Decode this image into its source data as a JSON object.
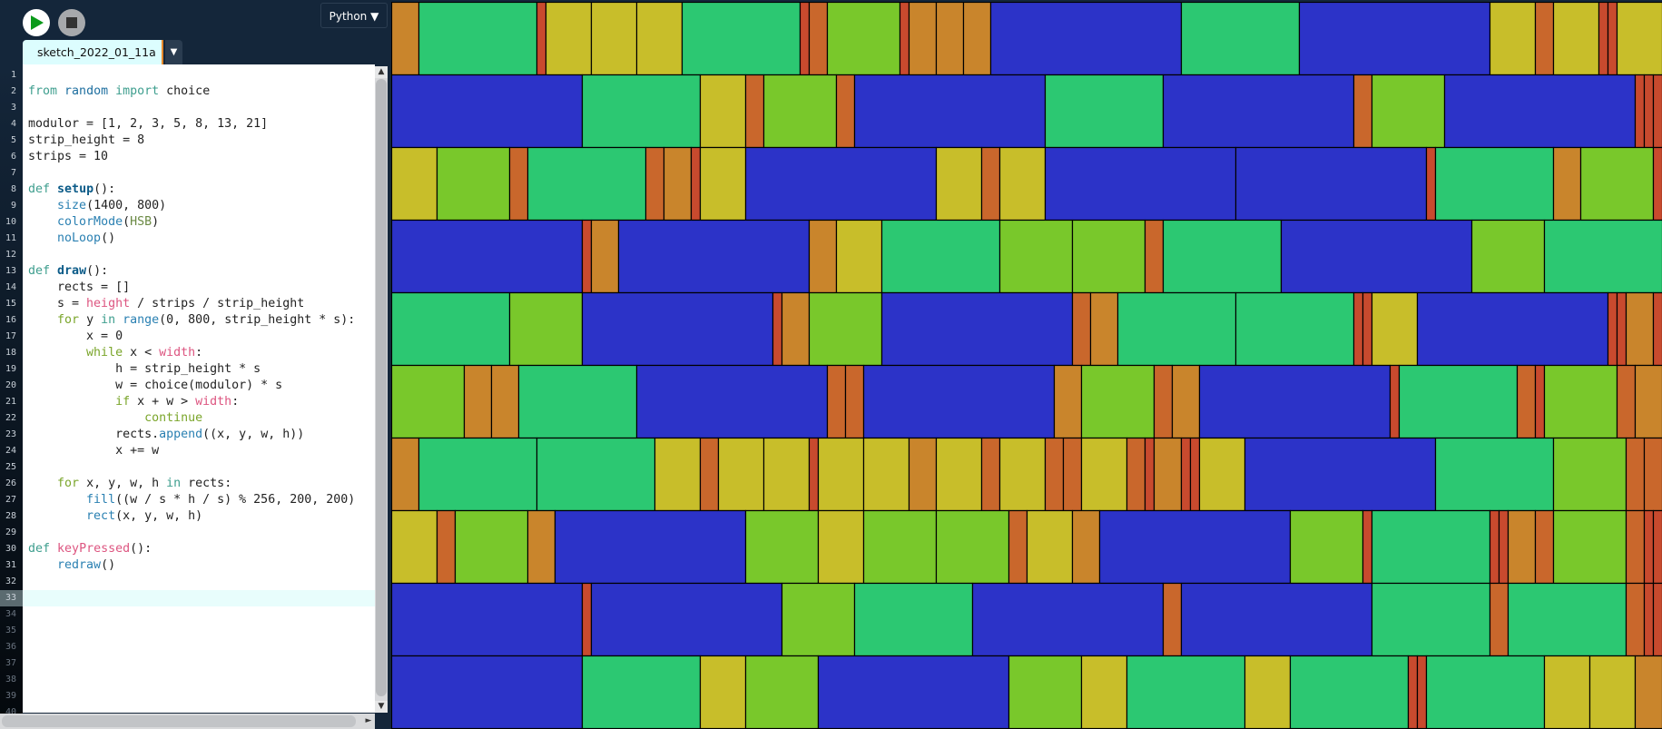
{
  "toolbar": {
    "run_icon": "play-icon",
    "stop_icon": "stop-icon",
    "mode": "Python ▼"
  },
  "tab": {
    "name": "sketch_2022_01_11a",
    "menu": "▼"
  },
  "editor": {
    "current_line": 33,
    "line_count": 40,
    "lines": [
      [],
      [
        [
          "from",
          "kw"
        ],
        [
          " "
        ],
        [
          "random",
          "mod"
        ],
        [
          " "
        ],
        [
          "import",
          "kw"
        ],
        [
          " choice"
        ]
      ],
      [],
      [
        [
          "modulor = [1, 2, 3, 5, 8, 13, 21]"
        ]
      ],
      [
        [
          "strip_height = 8"
        ]
      ],
      [
        [
          "strips = 10"
        ]
      ],
      [],
      [
        [
          "def",
          "kw"
        ],
        [
          " "
        ],
        [
          "setup",
          "fn"
        ],
        [
          "():"
        ]
      ],
      [
        [
          "    "
        ],
        [
          "size",
          "bi"
        ],
        [
          "(1400, 800)"
        ]
      ],
      [
        [
          "    "
        ],
        [
          "colorMode",
          "bi"
        ],
        [
          "("
        ],
        [
          "HSB",
          "const"
        ],
        [
          ")"
        ]
      ],
      [
        [
          "    "
        ],
        [
          "noLoop",
          "bi"
        ],
        [
          "()"
        ]
      ],
      [],
      [
        [
          "def",
          "kw"
        ],
        [
          " "
        ],
        [
          "draw",
          "fn"
        ],
        [
          "():"
        ]
      ],
      [
        [
          "    rects = []"
        ]
      ],
      [
        [
          "    s = "
        ],
        [
          "height",
          "pink"
        ],
        [
          " / strips / strip_height"
        ]
      ],
      [
        [
          "    "
        ],
        [
          "for",
          "ctl"
        ],
        [
          " y "
        ],
        [
          "in",
          "kw"
        ],
        [
          " "
        ],
        [
          "range",
          "bi"
        ],
        [
          "(0, 800, strip_height * s):"
        ]
      ],
      [
        [
          "        x = 0"
        ]
      ],
      [
        [
          "        "
        ],
        [
          "while",
          "ctl"
        ],
        [
          " x < "
        ],
        [
          "width",
          "pink"
        ],
        [
          ":"
        ]
      ],
      [
        [
          "            h = strip_height * s"
        ]
      ],
      [
        [
          "            w = choice(modulor) * s"
        ]
      ],
      [
        [
          "            "
        ],
        [
          "if",
          "ctl"
        ],
        [
          " x + w > "
        ],
        [
          "width",
          "pink"
        ],
        [
          ":"
        ]
      ],
      [
        [
          "                "
        ],
        [
          "continue",
          "ctl"
        ]
      ],
      [
        [
          "            rects."
        ],
        [
          "append",
          "bi"
        ],
        [
          "((x, y, w, h))"
        ]
      ],
      [
        [
          "            x += w"
        ]
      ],
      [],
      [
        [
          "    "
        ],
        [
          "for",
          "ctl"
        ],
        [
          " x, y, w, h "
        ],
        [
          "in",
          "kw"
        ],
        [
          " rects:"
        ]
      ],
      [
        [
          "        "
        ],
        [
          "fill",
          "bi"
        ],
        [
          "((w / s * h / s) % 256, 200, 200)"
        ]
      ],
      [
        [
          "        "
        ],
        [
          "rect",
          "bi"
        ],
        [
          "(x, y, w, h)"
        ]
      ],
      [],
      [
        [
          "def",
          "kw"
        ],
        [
          " "
        ],
        [
          "keyPressed",
          "pink"
        ],
        [
          "():"
        ]
      ],
      [
        [
          "    "
        ],
        [
          "redraw",
          "bi"
        ],
        [
          "()"
        ]
      ],
      [],
      []
    ]
  },
  "scrollbar": {
    "up": "▲",
    "down": "▼",
    "right": "►"
  },
  "canvas": {
    "size": [
      1400,
      800
    ],
    "strip_height": 8,
    "strips": 10,
    "modulor_colors": {
      "1": "#c84a2e",
      "2": "#c9672c",
      "3": "#c9852c",
      "5": "#c8be2a",
      "8": "#79c82b",
      "13": "#2cc872",
      "21": "#2c33c8"
    },
    "rows": [
      [
        3,
        13,
        1,
        5,
        5,
        5,
        13,
        1,
        2,
        8,
        1,
        3,
        3,
        3,
        21,
        13,
        21,
        5,
        2,
        5,
        1,
        1,
        5
      ],
      [
        21,
        13,
        5,
        2,
        8,
        2,
        21,
        13,
        21,
        2,
        8,
        21,
        1,
        1,
        1
      ],
      [
        5,
        8,
        2,
        13,
        2,
        3,
        1,
        5,
        21,
        5,
        2,
        5,
        21,
        21,
        1,
        13,
        3,
        8,
        1
      ],
      [
        21,
        1,
        3,
        21,
        3,
        5,
        13,
        8,
        8,
        2,
        13,
        21,
        8,
        13
      ],
      [
        13,
        8,
        21,
        1,
        3,
        8,
        21,
        2,
        3,
        13,
        13,
        1,
        1,
        5,
        21,
        1,
        1,
        3,
        1
      ],
      [
        8,
        3,
        3,
        13,
        21,
        2,
        2,
        21,
        3,
        8,
        2,
        3,
        21,
        1,
        13,
        2,
        1,
        8,
        2,
        3
      ],
      [
        3,
        13,
        13,
        5,
        2,
        5,
        5,
        1,
        5,
        5,
        3,
        5,
        2,
        5,
        2,
        2,
        5,
        2,
        1,
        3,
        1,
        1,
        5,
        21,
        13,
        8,
        2,
        2
      ],
      [
        5,
        2,
        8,
        3,
        21,
        8,
        5,
        8,
        8,
        2,
        5,
        3,
        21,
        8,
        1,
        13,
        1,
        1,
        3,
        2,
        8,
        2,
        1,
        1
      ],
      [
        21,
        1,
        21,
        8,
        13,
        21,
        2,
        21,
        13,
        2,
        13,
        2,
        1,
        1
      ],
      [
        21,
        13,
        5,
        8,
        21,
        8,
        5,
        13,
        5,
        13,
        1,
        1,
        13,
        5,
        5,
        3
      ]
    ]
  }
}
